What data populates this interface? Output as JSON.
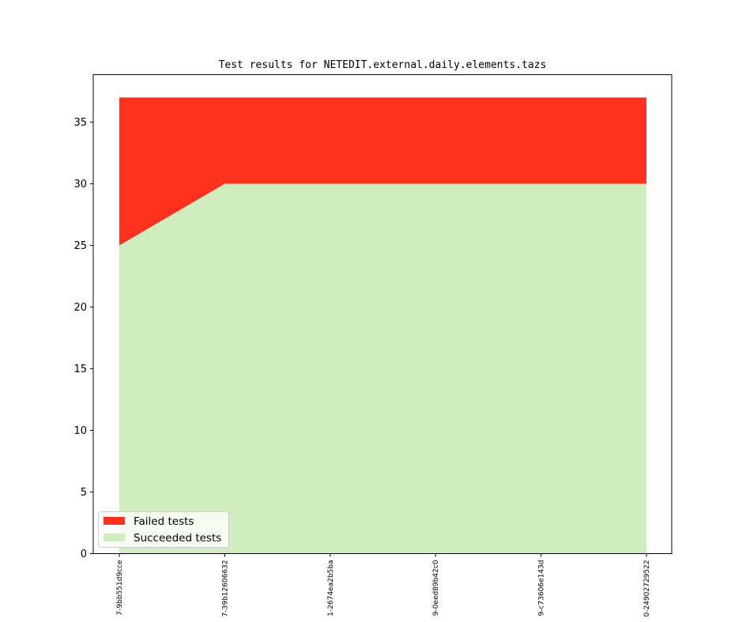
{
  "chart_data": {
    "type": "area",
    "stacked": true,
    "title": "Test results for NETEDIT.external.daily.elements.tazs",
    "xlabel": "",
    "ylabel": "",
    "x": [
      "7-9bb551d9cce",
      "7-39b12606632",
      "1-2674ea2b5ba",
      "9-0eed89b42c0",
      "9-c73606e143d",
      "0-24902729522"
    ],
    "series": [
      {
        "name": "Succeeded tests",
        "values": [
          25,
          30,
          30,
          30,
          30,
          30
        ],
        "color": "#cfedbf"
      },
      {
        "name": "Failed tests",
        "values": [
          12,
          7,
          7,
          7,
          7,
          7
        ],
        "color": "#ff311c"
      }
    ],
    "ylim": [
      0,
      38.85
    ],
    "yticks": [
      0,
      5,
      10,
      15,
      20,
      25,
      30,
      35
    ],
    "grid": false,
    "legend_position": "lower-left",
    "legend_order": [
      "Failed tests",
      "Succeeded tests"
    ]
  }
}
